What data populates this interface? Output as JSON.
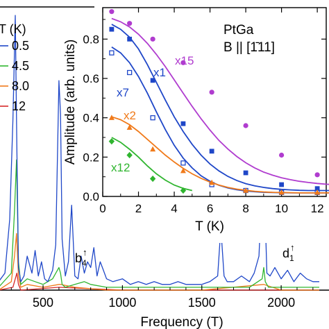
{
  "colors": {
    "0.5": "#1f47c8",
    "4.5": "#2fb52f",
    "8.0": "#f07a1a",
    "12": "#d62828",
    "x15": "#b03ccf"
  },
  "chart_data": [
    {
      "type": "line",
      "xlabel": "Frequency (T)",
      "xlim": [
        220,
        2240
      ],
      "xticks": [
        500,
        1000,
        1500,
        2000
      ],
      "xtick_labels": [
        "500",
        "1000",
        "1500",
        "2000"
      ],
      "ylim": [
        0,
        1.0
      ],
      "legend_title": "T (K)",
      "legend": [
        "0.5",
        "4.5",
        "8.0",
        "12"
      ],
      "annotations": [
        {
          "text": "b",
          "sub": "4",
          "sup": "↑"
        },
        {
          "text": "d",
          "sub": "1",
          "sup": "↑"
        }
      ],
      "series": [
        {
          "name": "0.5",
          "x": [
            220,
            260,
            290,
            310,
            325,
            335,
            345,
            360,
            380,
            400,
            430,
            450,
            470,
            490,
            510,
            530,
            560,
            580,
            600,
            610,
            620,
            640,
            660,
            680,
            700,
            720,
            740,
            760,
            780,
            800,
            820,
            840,
            860,
            880,
            900,
            940,
            1000,
            1050,
            1100,
            1150,
            1200,
            1250,
            1300,
            1350,
            1400,
            1450,
            1500,
            1550,
            1600,
            1620,
            1640,
            1660,
            1700,
            1750,
            1800,
            1830,
            1860,
            1880,
            1890,
            1900,
            1910,
            1930,
            1960,
            2000,
            2040,
            2080,
            2120,
            2160,
            2200,
            2240
          ],
          "y": [
            0.03,
            0.06,
            0.25,
            0.6,
            0.97,
            0.5,
            0.08,
            0.03,
            0.05,
            0.12,
            0.06,
            0.14,
            0.05,
            0.1,
            0.04,
            0.03,
            0.07,
            0.16,
            0.74,
            0.62,
            0.18,
            0.05,
            0.1,
            0.3,
            0.05,
            0.04,
            0.12,
            0.06,
            0.1,
            0.08,
            0.15,
            0.05,
            0.1,
            0.07,
            0.04,
            0.03,
            0.04,
            0.02,
            0.03,
            0.02,
            0.03,
            0.02,
            0.02,
            0.03,
            0.02,
            0.02,
            0.02,
            0.03,
            0.05,
            0.22,
            0.05,
            0.03,
            0.03,
            0.05,
            0.03,
            0.06,
            0.12,
            0.38,
            0.55,
            0.25,
            0.06,
            0.05,
            0.08,
            0.04,
            0.07,
            0.03,
            0.06,
            0.04,
            0.03,
            0.03
          ]
        },
        {
          "name": "4.5",
          "x": [
            220,
            300,
            320,
            333,
            345,
            360,
            400,
            450,
            500,
            560,
            600,
            610,
            620,
            640,
            700,
            760,
            800,
            900,
            1000,
            1200,
            1400,
            1600,
            1800,
            1880,
            1890,
            1900,
            1920,
            2000,
            2100,
            2240
          ],
          "y": [
            0.01,
            0.06,
            0.28,
            0.46,
            0.1,
            0.02,
            0.04,
            0.03,
            0.02,
            0.04,
            0.08,
            0.06,
            0.02,
            0.01,
            0.02,
            0.03,
            0.02,
            0.01,
            0.01,
            0.01,
            0.01,
            0.01,
            0.01,
            0.04,
            0.08,
            0.03,
            0.01,
            0.01,
            0.01,
            0.01
          ]
        },
        {
          "name": "8.0",
          "x": [
            220,
            300,
            320,
            333,
            345,
            360,
            400,
            500,
            600,
            610,
            700,
            900,
            1200,
            1500,
            1890,
            2000,
            2240
          ],
          "y": [
            0.0,
            0.03,
            0.12,
            0.2,
            0.05,
            0.01,
            0.02,
            0.01,
            0.02,
            0.02,
            0.01,
            0.0,
            0.0,
            0.0,
            0.02,
            0.0,
            0.0
          ]
        },
        {
          "name": "12",
          "x": [
            220,
            310,
            325,
            335,
            345,
            360,
            600,
            1000,
            1500,
            2240
          ],
          "y": [
            0.0,
            0.01,
            0.04,
            0.06,
            0.02,
            0.0,
            0.01,
            0.0,
            0.0,
            0.0
          ]
        }
      ]
    },
    {
      "type": "scatter",
      "title": "PtGa",
      "subtitle": "B || [1̄11]",
      "xlabel": "T (K)",
      "ylabel": "Amplitude (arb. units)",
      "xlim": [
        0,
        12.5
      ],
      "ylim": [
        0,
        0.96
      ],
      "xticks": [
        0,
        2,
        4,
        6,
        8,
        10,
        12
      ],
      "yticks": [
        0.0,
        0.2,
        0.4,
        0.6,
        0.8
      ],
      "ytick_labels": [
        "0.0",
        "0.2",
        "0.4",
        "0.6",
        "0.8"
      ],
      "series": [
        {
          "name": "x15",
          "marker": "circle",
          "x": [
            0.5,
            1.5,
            2.8,
            4.5,
            6.1,
            8.0,
            10.0,
            12.0
          ],
          "y": [
            0.94,
            0.88,
            0.8,
            0.68,
            0.53,
            0.36,
            0.21,
            0.11
          ],
          "fit": [
            0.905,
            0.888,
            0.862,
            0.825,
            0.778,
            0.722,
            0.66,
            0.593,
            0.525,
            0.458,
            0.395,
            0.337,
            0.285,
            0.241,
            0.203,
            0.171,
            0.145,
            0.124,
            0.108,
            0.095,
            0.085,
            0.077,
            0.071,
            0.066,
            0.062,
            0.06
          ]
        },
        {
          "name": "x1",
          "marker": "square",
          "x": [
            0.5,
            1.5,
            2.8,
            4.5,
            6.1,
            8.0,
            10.0,
            12.0
          ],
          "y": [
            0.85,
            0.8,
            0.59,
            0.37,
            0.23,
            0.12,
            0.06,
            0.04
          ],
          "fit": [
            0.875,
            0.85,
            0.81,
            0.75,
            0.67,
            0.58,
            0.49,
            0.405,
            0.33,
            0.265,
            0.21,
            0.165,
            0.13,
            0.102,
            0.081,
            0.065,
            0.054,
            0.046,
            0.04,
            0.036,
            0.033,
            0.031,
            0.03,
            0.03,
            0.03,
            0.03
          ]
        },
        {
          "name": "x7",
          "marker": "open-square",
          "x": [
            0.5,
            1.5,
            2.8,
            4.5,
            6.1,
            8.0,
            10.0,
            12.0
          ],
          "y": [
            0.73,
            0.63,
            0.4,
            0.17,
            0.06,
            0.03,
            0.02,
            0.02
          ],
          "fit": [
            0.76,
            0.73,
            0.68,
            0.61,
            0.525,
            0.43,
            0.34,
            0.26,
            0.195,
            0.145,
            0.105,
            0.077,
            0.057,
            0.043,
            0.034,
            0.028,
            0.024,
            0.021,
            0.02,
            0.019,
            0.018,
            0.018,
            0.018,
            0.018,
            0.018,
            0.018
          ]
        },
        {
          "name": "x2",
          "marker": "triangle",
          "x": [
            0.5,
            1.5,
            2.8,
            4.5,
            6.1,
            8.0,
            10.0,
            12.0
          ],
          "y": [
            0.4,
            0.35,
            0.24,
            0.13,
            0.07,
            0.03,
            0.02,
            0.02
          ],
          "fit": [
            0.405,
            0.39,
            0.365,
            0.33,
            0.29,
            0.25,
            0.21,
            0.175,
            0.143,
            0.115,
            0.092,
            0.073,
            0.058,
            0.046,
            0.037,
            0.031,
            0.026,
            0.023,
            0.021,
            0.02,
            0.019,
            0.018,
            0.018,
            0.018,
            0.018,
            0.018
          ]
        },
        {
          "name": "x12",
          "marker": "diamond",
          "x": [
            0.5,
            1.5,
            2.8,
            4.5
          ],
          "y": [
            0.28,
            0.21,
            0.09,
            0.03
          ],
          "fit": [
            0.3,
            0.275,
            0.24,
            0.2,
            0.155,
            0.115,
            0.083,
            0.058,
            0.041,
            0.03
          ]
        }
      ]
    }
  ]
}
